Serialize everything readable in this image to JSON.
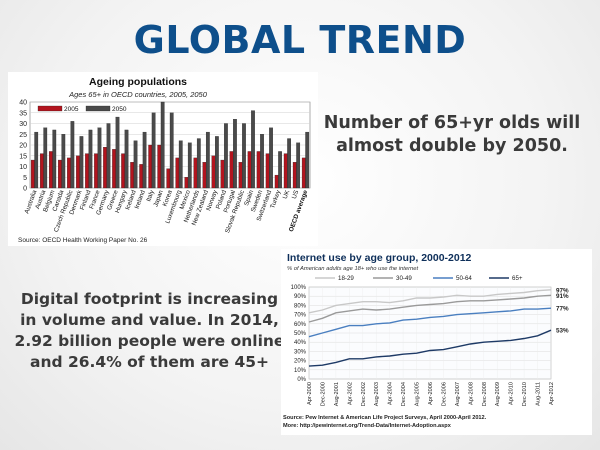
{
  "slide": {
    "title": "GLOBAL TREND",
    "caption1": "Number of 65+yr olds will almost double by 2050.",
    "caption2": "Digital footprint is increasing in volume and value. In 2014, 2.92 billion people were online and 26.4% of them are 45+"
  },
  "chart_data": [
    {
      "type": "bar",
      "title": "Ageing populations",
      "subtitle": "Ages 65+ in OECD countries, 2005, 2050",
      "source": "Source: OECD Health Working Paper No. 26",
      "ylim": [
        0,
        40
      ],
      "yticks": [
        0,
        5,
        10,
        15,
        20,
        25,
        30,
        35,
        40
      ],
      "legend_position": "top-left",
      "colors": {
        "2005": "#b3141e",
        "2050": "#4a4a4a"
      },
      "categories": [
        "Australia",
        "Austria",
        "Belgium",
        "Canada",
        "Czech Republic",
        "Denmark",
        "Finland",
        "France",
        "Germany",
        "Greece",
        "Hungary",
        "Iceland",
        "Ireland",
        "Italy",
        "Japan",
        "Korea",
        "Luxembourg",
        "Mexico",
        "Netherlands",
        "New Zealand",
        "Norway",
        "Poland",
        "Portugal",
        "Slovak Republic",
        "Spain",
        "Sweden",
        "Switzerland",
        "Turkey",
        "UK",
        "US",
        "OECD average"
      ],
      "series": [
        {
          "name": "2005",
          "values": [
            13,
            16,
            17,
            13,
            14,
            15,
            16,
            16,
            19,
            18,
            16,
            12,
            11,
            20,
            20,
            9,
            14,
            5,
            14,
            12,
            15,
            13,
            17,
            12,
            17,
            17,
            16,
            6,
            16,
            12,
            14
          ]
        },
        {
          "name": "2050",
          "values": [
            26,
            28,
            27,
            25,
            31,
            24,
            27,
            28,
            30,
            33,
            27,
            22,
            26,
            35,
            40,
            35,
            22,
            21,
            23,
            26,
            24,
            30,
            32,
            30,
            36,
            25,
            28,
            17,
            23,
            21,
            26
          ]
        }
      ]
    },
    {
      "type": "line",
      "title": "Internet use by age group, 2000-2012",
      "subtitle": "% of American adults age 18+ who use the internet",
      "source": "Source: Pew Internet & American Life Project Surveys, April 2000-April 2012.",
      "more": "More: http://pewinternet.org/Trend-Data/Internet-Adoption.aspx",
      "ylim": [
        0,
        100
      ],
      "yticks": [
        "0%",
        "10%",
        "20%",
        "30%",
        "40%",
        "50%",
        "60%",
        "70%",
        "80%",
        "90%",
        "100%"
      ],
      "x": [
        "Apr-2000",
        "Dec-2000",
        "Aug-2001",
        "Apr-2002",
        "Dec-2002",
        "Aug-2003",
        "Apr-2004",
        "Dec-2004",
        "Aug-2005",
        "Apr-2006",
        "Dec-2006",
        "Aug-2007",
        "Apr-2008",
        "Dec-2008",
        "Aug-2009",
        "Apr-2010",
        "Dec-2010",
        "Aug-2011",
        "Apr-2012"
      ],
      "legend_position": "top",
      "series": [
        {
          "name": "18-29",
          "color": "#c8c8c8",
          "end_label": "97%",
          "values": [
            72,
            75,
            80,
            82,
            84,
            84,
            83,
            85,
            88,
            88,
            89,
            91,
            90,
            90,
            92,
            93,
            94,
            96,
            97
          ]
        },
        {
          "name": "30-49",
          "color": "#9a9a9a",
          "end_label": "91%",
          "values": [
            62,
            66,
            72,
            74,
            76,
            75,
            76,
            78,
            80,
            81,
            82,
            84,
            85,
            85,
            86,
            87,
            88,
            90,
            91
          ]
        },
        {
          "name": "50-64",
          "color": "#4a7fc0",
          "end_label": "77%",
          "values": [
            46,
            50,
            54,
            58,
            58,
            60,
            61,
            64,
            65,
            67,
            68,
            70,
            71,
            72,
            73,
            74,
            76,
            76,
            77
          ]
        },
        {
          "name": "65+",
          "color": "#1e3a66",
          "end_label": "53%",
          "values": [
            14,
            15,
            18,
            22,
            22,
            24,
            25,
            27,
            28,
            31,
            32,
            35,
            38,
            40,
            41,
            42,
            44,
            47,
            53
          ]
        }
      ]
    }
  ]
}
